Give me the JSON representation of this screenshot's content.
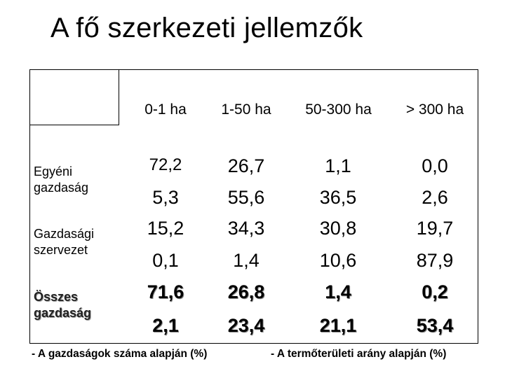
{
  "title": "A fő szerkezeti jellemzők",
  "columns": [
    "0-1 ha",
    "1-50 ha",
    "50-300 ha",
    "> 300 ha"
  ],
  "rows": [
    {
      "label_line1": "Egyéni",
      "label_line2": "gazdaság",
      "count": [
        "72,2",
        "26,7",
        "1,1",
        "0,0"
      ],
      "area": [
        "5,3",
        "55,6",
        "36,5",
        "2,6"
      ]
    },
    {
      "label_line1": "Gazdasági",
      "label_line2": "szervezet",
      "count": [
        "15,2",
        "34,3",
        "30,8",
        "19,7"
      ],
      "area": [
        "0,1",
        "1,4",
        "10,6",
        "87,9"
      ]
    },
    {
      "label_line1": "Összes",
      "label_line2": "gazdaság",
      "count": [
        "71,6",
        "26,8",
        "1,4",
        "0,2"
      ],
      "area": [
        "2,1",
        "23,4",
        "21,1",
        "53,4"
      ]
    }
  ],
  "footnotes": {
    "left": "- A gazdaságok száma alapján (%)",
    "right": "- A termőterületi arány alapján (%)"
  }
}
